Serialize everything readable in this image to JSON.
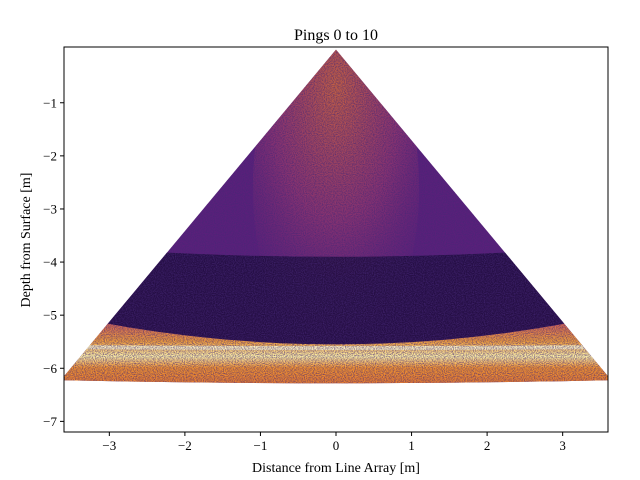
{
  "chart_data": {
    "type": "heatmap",
    "title": "Pings 0 to 10",
    "xlabel": "Distance from Line Array [m]",
    "ylabel": "Depth from Surface [m]",
    "xlim": [
      -3.6,
      3.6
    ],
    "ylim": [
      -7.2,
      0.05
    ],
    "xticks": [
      -3,
      -2,
      -1,
      0,
      1,
      2,
      3
    ],
    "xtick_labels": [
      "−3",
      "−2",
      "−1",
      "0",
      "1",
      "2",
      "3"
    ],
    "yticks": [
      -1,
      -2,
      -3,
      -4,
      -5,
      -6,
      -7
    ],
    "ytick_labels": [
      "−1",
      "−2",
      "−3",
      "−4",
      "−5",
      "−6",
      "−7"
    ],
    "grid": false,
    "colormap": "inferno",
    "sonar_fan": {
      "apex": [
        0,
        0
      ],
      "left_corner": [
        -3.6,
        -6.15
      ],
      "right_corner": [
        3.6,
        -6.15
      ],
      "seafloor_depth_edge": -5.0,
      "seafloor_depth_center": -5.55,
      "bright_band_depth": -5.6
    },
    "colors": {
      "background": "#ffffff",
      "deep": "#1a0b3a",
      "mid": "#5a1f7a",
      "warm": "#b84d6a",
      "hot": "#f08a2c",
      "peak": "#fde98f"
    }
  }
}
